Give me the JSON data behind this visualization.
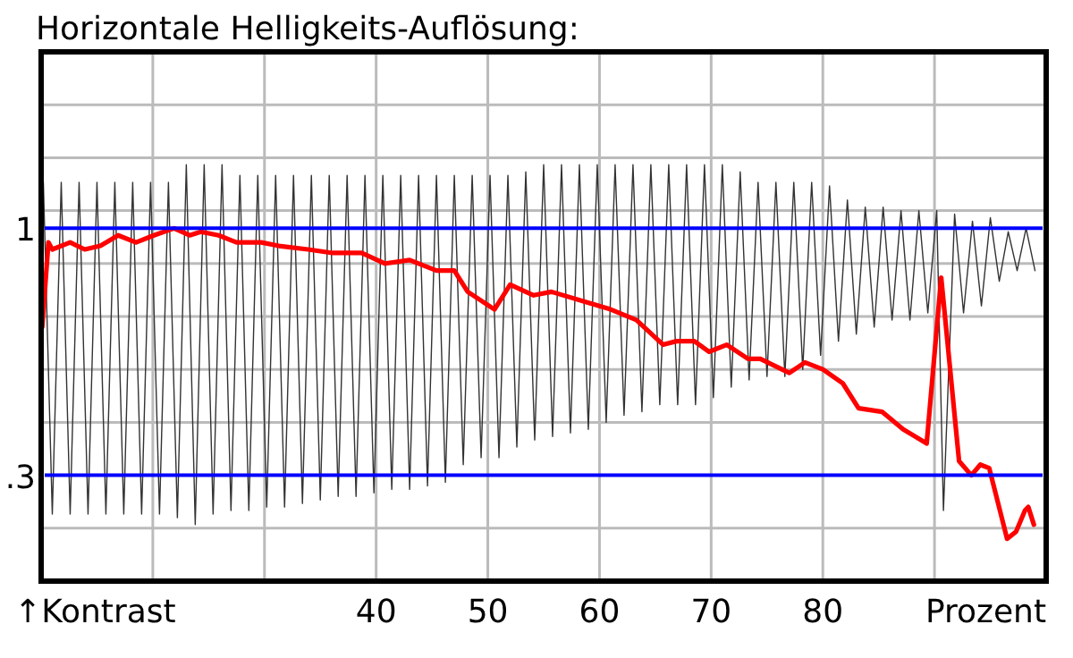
{
  "chart_data": {
    "type": "line",
    "title": "Horizontale Helligkeits-Auflösung:",
    "xlabel": "Prozent",
    "annotations": [
      "↑Kontrast"
    ],
    "xlim": [
      10,
      100
    ],
    "ylim": [
      0,
      1.5
    ],
    "xticks": [
      {
        "value": 20,
        "label": null
      },
      {
        "value": 30,
        "label": null
      },
      40,
      50,
      60,
      70,
      80,
      {
        "value": 90,
        "label": null
      }
    ],
    "yticks": [
      {
        "value": 0.15,
        "label": null
      },
      {
        "value": 0.45,
        "label": null
      },
      {
        "value": 0.6,
        "label": null
      },
      {
        "value": 0.75,
        "label": null
      },
      {
        "value": 0.9,
        "label": null
      },
      {
        "value": 1.05,
        "label": null
      },
      {
        "value": 1.2,
        "label": null
      },
      {
        "value": 1.35,
        "label": null
      }
    ],
    "grid": true,
    "marker": "none",
    "line_style": "solid",
    "ref_lines": [
      {
        "axis": "y",
        "value": 1,
        "label": "1",
        "color": "#0000ff"
      },
      {
        "axis": "y",
        "value": 0.3,
        "label": ".3",
        "color": "#0000ff"
      }
    ],
    "series": [
      {
        "color": "#333333",
        "x": [
          10.2,
          11.0,
          11.8,
          12.6,
          13.4,
          14.2,
          15.0,
          15.8,
          16.6,
          17.4,
          18.2,
          19.0,
          19.8,
          20.6,
          21.4,
          22.2,
          23.0,
          23.8,
          24.6,
          25.4,
          26.2,
          27.0,
          27.8,
          28.6,
          29.4,
          30.2,
          31.0,
          31.8,
          32.6,
          33.4,
          34.2,
          35.0,
          35.8,
          36.6,
          37.4,
          38.2,
          39.0,
          39.8,
          40.6,
          41.4,
          42.2,
          43.0,
          43.8,
          44.6,
          45.4,
          46.2,
          47.0,
          47.8,
          48.6,
          49.4,
          50.2,
          51.0,
          51.8,
          52.6,
          53.4,
          54.2,
          55.0,
          55.8,
          56.6,
          57.4,
          58.2,
          59.0,
          59.8,
          60.6,
          61.4,
          62.2,
          63.0,
          63.8,
          64.6,
          65.4,
          66.2,
          67.0,
          67.8,
          68.6,
          69.4,
          70.2,
          71.0,
          71.8,
          72.6,
          73.4,
          74.2,
          75.0,
          75.8,
          76.6,
          77.4,
          78.2,
          79.0,
          79.8,
          80.6,
          81.4,
          82.2,
          83.0,
          83.8,
          84.6,
          85.4,
          86.2,
          87.0,
          87.8,
          88.6,
          89.4,
          90.2,
          90.8,
          91.8,
          92.6,
          93.4,
          94.2,
          95.0,
          95.8,
          96.6,
          97.4,
          98.2,
          99.0
        ],
        "values": [
          1.13,
          0.19,
          1.13,
          0.19,
          1.13,
          0.19,
          1.13,
          0.19,
          1.13,
          0.19,
          1.13,
          0.19,
          1.13,
          0.19,
          1.13,
          0.18,
          1.18,
          0.16,
          1.18,
          0.19,
          1.18,
          0.2,
          1.15,
          0.2,
          1.15,
          0.21,
          1.15,
          0.21,
          1.15,
          0.22,
          1.15,
          0.23,
          1.15,
          0.24,
          1.15,
          0.24,
          1.15,
          0.25,
          1.15,
          0.26,
          1.15,
          0.26,
          1.15,
          0.27,
          1.15,
          0.28,
          1.15,
          0.33,
          1.15,
          0.35,
          1.15,
          0.35,
          1.15,
          0.38,
          1.16,
          0.4,
          1.18,
          0.41,
          1.18,
          0.42,
          1.18,
          0.43,
          1.18,
          0.45,
          1.18,
          0.47,
          1.18,
          0.48,
          1.18,
          0.5,
          1.18,
          0.5,
          1.18,
          0.5,
          1.18,
          0.52,
          1.18,
          0.55,
          1.16,
          0.57,
          1.13,
          0.58,
          1.13,
          0.58,
          1.13,
          0.6,
          1.13,
          0.64,
          1.12,
          0.68,
          1.08,
          0.7,
          1.06,
          0.72,
          1.06,
          0.74,
          1.05,
          0.74,
          1.05,
          0.76,
          1.05,
          0.2,
          1.04,
          0.76,
          1.02,
          0.78,
          1.03,
          0.85,
          0.99,
          0.88,
          1.0,
          0.88
        ]
      },
      {
        "color": "#ff0000",
        "x": [
          10.1,
          10.65,
          11.0,
          12.6,
          13.9,
          15.3,
          16.9,
          18.5,
          20.1,
          21.9,
          23.3,
          24.3,
          25.9,
          27.5,
          29.7,
          31.3,
          33.9,
          36.1,
          38.7,
          40.8,
          43.0,
          45.4,
          47.0,
          48.2,
          50.6,
          52.0,
          54.1,
          55.7,
          58.9,
          61.0,
          63.3,
          65.7,
          66.9,
          68.5,
          69.8,
          71.4,
          73.3,
          74.4,
          77.0,
          78.4,
          80.0,
          81.8,
          83.2,
          85.3,
          87.2,
          89.3,
          90.6,
          92.2,
          93.3,
          94.1,
          94.9,
          96.5,
          97.3,
          98.1,
          98.4,
          98.9
        ],
        "values": [
          0.72,
          0.96,
          0.94,
          0.96,
          0.94,
          0.95,
          0.98,
          0.96,
          0.98,
          1.0,
          0.98,
          0.99,
          0.98,
          0.96,
          0.96,
          0.95,
          0.94,
          0.93,
          0.93,
          0.9,
          0.91,
          0.88,
          0.88,
          0.82,
          0.77,
          0.84,
          0.81,
          0.82,
          0.79,
          0.77,
          0.74,
          0.67,
          0.68,
          0.68,
          0.65,
          0.67,
          0.63,
          0.63,
          0.59,
          0.62,
          0.6,
          0.56,
          0.49,
          0.48,
          0.43,
          0.39,
          0.86,
          0.34,
          0.3,
          0.33,
          0.32,
          0.12,
          0.14,
          0.2,
          0.21,
          0.16
        ]
      }
    ]
  }
}
